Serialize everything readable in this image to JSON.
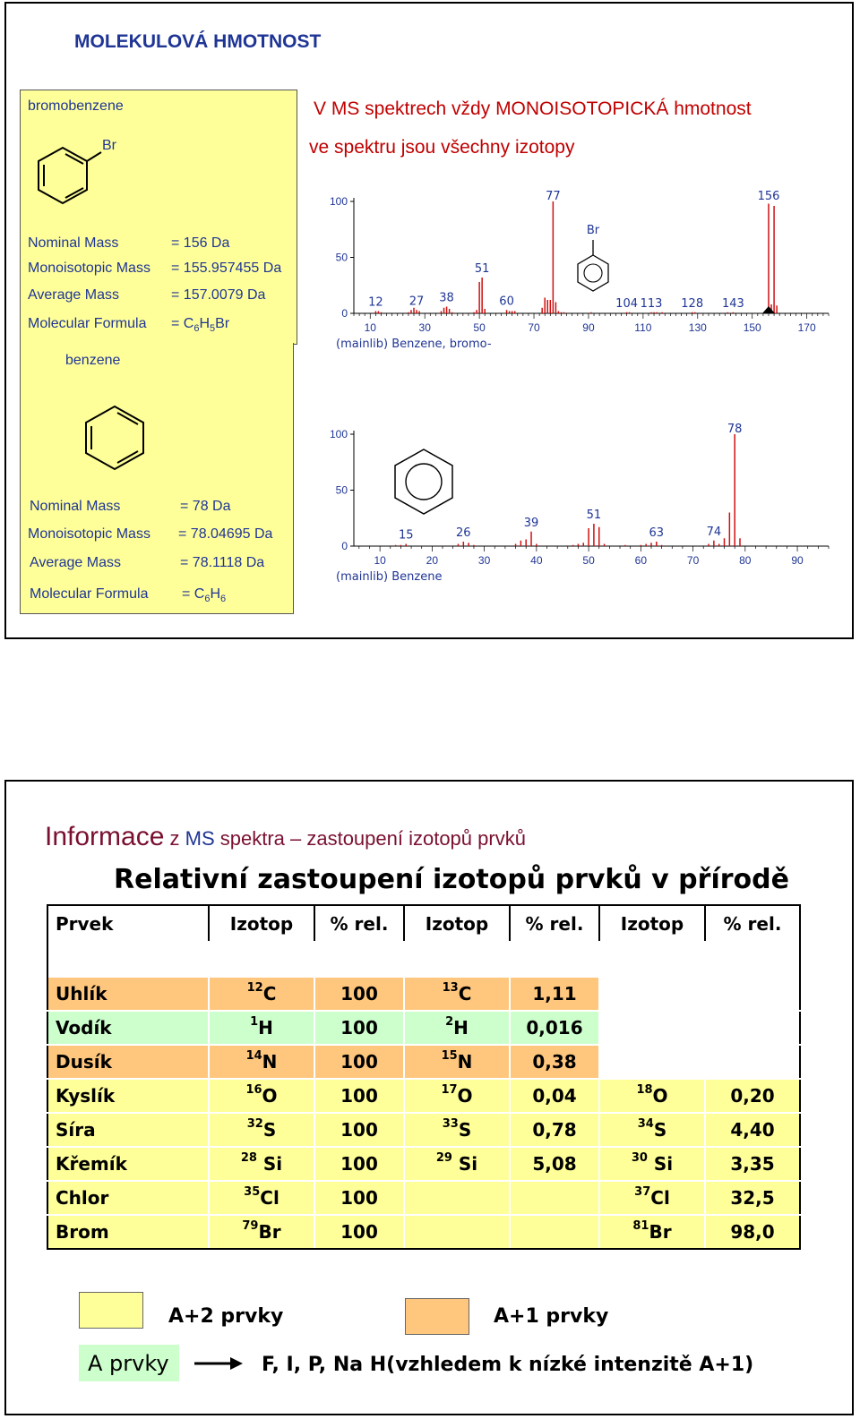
{
  "slide1": {
    "title": "MOLEKULOVÁ HMOTNOST",
    "bromobenzene": {
      "name": "bromobenzene",
      "substituent": "Br",
      "rows": [
        {
          "label": "Nominal Mass",
          "value": "= 156 Da"
        },
        {
          "label": "Monoisotopic Mass",
          "value": "= 155.957455 Da"
        },
        {
          "label": "Average Mass",
          "value": "= 157.0079 Da"
        }
      ],
      "formula_label": "Molecular Formula",
      "formula": {
        "eq": "= C",
        "sub1": "6",
        "mid": "H",
        "sub2": "5",
        "end": "Br"
      }
    },
    "benzene": {
      "name": "benzene",
      "rows": [
        {
          "label": "Nominal Mass",
          "value": "= 78 Da"
        },
        {
          "label": "Monoisotopic Mass",
          "value": "= 78.04695 Da"
        },
        {
          "label": "Average Mass",
          "value": "= 78.1118 Da"
        }
      ],
      "formula_label": "Molecular Formula",
      "formula": {
        "eq": "= C",
        "sub1": "6",
        "mid": "H",
        "sub2": "6"
      }
    },
    "header_line1": "V MS spektrech  vždy MONOISOTOPICKÁ hmotnost",
    "header_line2": "ve spektru jsou všechny izotopy"
  },
  "chart_data": [
    {
      "type": "bar",
      "caption": "(mainlib) Benzene, bromo-",
      "inset_label": "Br",
      "xlim": [
        4,
        178
      ],
      "ylim": [
        0,
        100
      ],
      "y_ticks": [
        "0",
        "50",
        "100"
      ],
      "x_ticks": [
        10,
        30,
        50,
        70,
        90,
        110,
        130,
        150,
        170
      ],
      "peak_labels": [
        12,
        27,
        38,
        51,
        60,
        77,
        104,
        113,
        128,
        143,
        156
      ],
      "peaks": [
        [
          12,
          2
        ],
        [
          13,
          2
        ],
        [
          14,
          1
        ],
        [
          24,
          1
        ],
        [
          25,
          3
        ],
        [
          26,
          5
        ],
        [
          27,
          3
        ],
        [
          28,
          2
        ],
        [
          36,
          2
        ],
        [
          37,
          5
        ],
        [
          38,
          6
        ],
        [
          39,
          4
        ],
        [
          40,
          1
        ],
        [
          48,
          1
        ],
        [
          49,
          3
        ],
        [
          50,
          28
        ],
        [
          51,
          32
        ],
        [
          52,
          4
        ],
        [
          60,
          3
        ],
        [
          61,
          2
        ],
        [
          62,
          2
        ],
        [
          63,
          2
        ],
        [
          73,
          5
        ],
        [
          74,
          14
        ],
        [
          75,
          12
        ],
        [
          76,
          12
        ],
        [
          77,
          100
        ],
        [
          78,
          10
        ],
        [
          79,
          2
        ],
        [
          80,
          1
        ],
        [
          81,
          1
        ],
        [
          91,
          1
        ],
        [
          104,
          1
        ],
        [
          105,
          1
        ],
        [
          113,
          1
        ],
        [
          114,
          1
        ],
        [
          115,
          1
        ],
        [
          117,
          1
        ],
        [
          128,
          1
        ],
        [
          129,
          1
        ],
        [
          141,
          1
        ],
        [
          143,
          1
        ],
        [
          155,
          3
        ],
        [
          156,
          98
        ],
        [
          157,
          8
        ],
        [
          158,
          96
        ],
        [
          159,
          7
        ]
      ]
    },
    {
      "type": "bar",
      "caption": "(mainlib) Benzene",
      "xlim": [
        5,
        96
      ],
      "ylim": [
        0,
        100
      ],
      "y_ticks": [
        "0",
        "50",
        "100"
      ],
      "x_ticks": [
        10,
        20,
        30,
        40,
        50,
        60,
        70,
        80,
        90
      ],
      "peak_labels": [
        15,
        26,
        39,
        51,
        63,
        74,
        78
      ],
      "peaks": [
        [
          13,
          1
        ],
        [
          14,
          1
        ],
        [
          15,
          2
        ],
        [
          25,
          2
        ],
        [
          26,
          4
        ],
        [
          27,
          3
        ],
        [
          28,
          1
        ],
        [
          36,
          2
        ],
        [
          37,
          5
        ],
        [
          38,
          6
        ],
        [
          39,
          13
        ],
        [
          40,
          2
        ],
        [
          47,
          1
        ],
        [
          48,
          2
        ],
        [
          49,
          3
        ],
        [
          50,
          16
        ],
        [
          51,
          20
        ],
        [
          52,
          17
        ],
        [
          53,
          2
        ],
        [
          57,
          1
        ],
        [
          60,
          1
        ],
        [
          61,
          2
        ],
        [
          62,
          3
        ],
        [
          63,
          4
        ],
        [
          64,
          1
        ],
        [
          73,
          2
        ],
        [
          74,
          5
        ],
        [
          75,
          2
        ],
        [
          76,
          7
        ],
        [
          77,
          30
        ],
        [
          78,
          100
        ],
        [
          79,
          7
        ]
      ]
    }
  ],
  "slide2": {
    "title_big": "Informace",
    "title_rest_1": " z ",
    "title_rest_2": "MS",
    "title_rest_3": " spektra – zastoupení izotopů prvků",
    "subtitle": "Relativní zastoupení izotopů prvků v přírodě",
    "headers": [
      "Prvek",
      "Izotop",
      "% rel.",
      "Izotop",
      "% rel.",
      "Izotop",
      "% rel."
    ],
    "rows": [
      {
        "el": "Uhlík",
        "i1m": "12",
        "i1s": "C",
        "p1": "100",
        "i2m": "13",
        "i2s": "C",
        "p2": "1,11",
        "i3m": "",
        "i3s": "",
        "p3": "",
        "color": "#ffc77d"
      },
      {
        "el": "Vodík",
        "i1m": "1",
        "i1s": "H",
        "p1": "100",
        "i2m": "2",
        "i2s": "H",
        "p2": "0,016",
        "i3m": "",
        "i3s": "",
        "p3": "",
        "color": "#ccffcc"
      },
      {
        "el": "Dusík",
        "i1m": "14",
        "i1s": "N",
        "p1": "100",
        "i2m": "15",
        "i2s": "N",
        "p2": "0,38",
        "i3m": "",
        "i3s": "",
        "p3": "",
        "color": "#ffc77d"
      },
      {
        "el": "Kyslík",
        "i1m": "16",
        "i1s": "O",
        "p1": "100",
        "i2m": "17",
        "i2s": "O",
        "p2": "0,04",
        "i3m": "18",
        "i3s": "O",
        "p3": "0,20",
        "color": "#ffff99"
      },
      {
        "el": "Síra",
        "i1m": "32",
        "i1s": "S",
        "p1": "100",
        "i2m": "33",
        "i2s": "S",
        "p2": "0,78",
        "i3m": "34",
        "i3s": "S",
        "p3": "4,40",
        "color": "#ffff99"
      },
      {
        "el": "Křemík",
        "i1m": "28",
        "i1s": " Si",
        "p1": "100",
        "i2m": "29",
        "i2s": " Si",
        "p2": "5,08",
        "i3m": "30",
        "i3s": " Si",
        "p3": "3,35",
        "color": "#ffff99"
      },
      {
        "el": "Chlor",
        "i1m": "35",
        "i1s": "Cl",
        "p1": "100",
        "i2m": "",
        "i2s": "",
        "p2": "",
        "i3m": "37",
        "i3s": "Cl",
        "p3": "32,5",
        "color": "#ffff99"
      },
      {
        "el": "Brom",
        "i1m": "79",
        "i1s": "Br",
        "p1": "100",
        "i2m": "",
        "i2s": "",
        "p2": "",
        "i3m": "81",
        "i3s": "Br",
        "p3": "98,0",
        "color": "#ffff99"
      }
    ],
    "legend": {
      "a2": "A+2 prvky",
      "a1": "A+1 prvky",
      "a": "A prvky",
      "arrow_text": "F, I, P, Na  H(vzhledem k nízké intenzitě A+1)"
    },
    "colors": {
      "yellow": "#ffff99",
      "orange": "#ffc77d",
      "green": "#ccffcc"
    }
  }
}
